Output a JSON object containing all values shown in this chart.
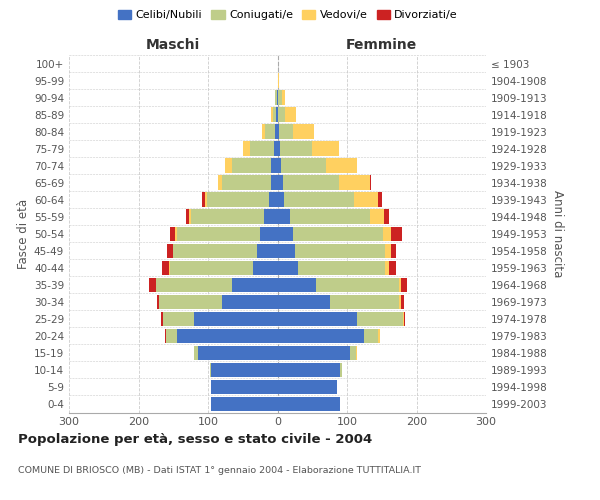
{
  "age_groups": [
    "0-4",
    "5-9",
    "10-14",
    "15-19",
    "20-24",
    "25-29",
    "30-34",
    "35-39",
    "40-44",
    "45-49",
    "50-54",
    "55-59",
    "60-64",
    "65-69",
    "70-74",
    "75-79",
    "80-84",
    "85-89",
    "90-94",
    "95-99",
    "100+"
  ],
  "birth_years": [
    "1999-2003",
    "1994-1998",
    "1989-1993",
    "1984-1988",
    "1979-1983",
    "1974-1978",
    "1969-1973",
    "1964-1968",
    "1959-1963",
    "1954-1958",
    "1949-1953",
    "1944-1948",
    "1939-1943",
    "1934-1938",
    "1929-1933",
    "1924-1928",
    "1919-1923",
    "1914-1918",
    "1909-1913",
    "1904-1908",
    "≤ 1903"
  ],
  "male": {
    "celibi": [
      95,
      95,
      95,
      115,
      145,
      120,
      80,
      65,
      35,
      30,
      25,
      20,
      12,
      10,
      10,
      5,
      3,
      2,
      1,
      0,
      0
    ],
    "coniugati": [
      0,
      0,
      2,
      5,
      15,
      45,
      90,
      110,
      120,
      120,
      120,
      105,
      90,
      70,
      55,
      35,
      15,
      5,
      2,
      0,
      0
    ],
    "vedovi": [
      0,
      0,
      0,
      0,
      0,
      0,
      0,
      0,
      1,
      1,
      2,
      2,
      3,
      5,
      10,
      10,
      5,
      2,
      0,
      0,
      0
    ],
    "divorziati": [
      0,
      0,
      0,
      0,
      2,
      2,
      3,
      10,
      10,
      8,
      8,
      5,
      3,
      0,
      0,
      0,
      0,
      0,
      0,
      0,
      0
    ]
  },
  "female": {
    "nubili": [
      90,
      85,
      90,
      105,
      125,
      115,
      75,
      55,
      30,
      25,
      22,
      18,
      10,
      8,
      5,
      4,
      2,
      1,
      1,
      0,
      0
    ],
    "coniugate": [
      0,
      0,
      3,
      8,
      20,
      65,
      100,
      120,
      125,
      130,
      130,
      115,
      100,
      80,
      65,
      45,
      20,
      10,
      5,
      1,
      0
    ],
    "vedove": [
      0,
      0,
      0,
      1,
      2,
      2,
      2,
      3,
      5,
      8,
      12,
      20,
      35,
      45,
      45,
      40,
      30,
      15,
      5,
      1,
      0
    ],
    "divorziate": [
      0,
      0,
      0,
      0,
      1,
      2,
      5,
      8,
      10,
      8,
      15,
      8,
      5,
      1,
      0,
      0,
      0,
      0,
      0,
      0,
      0
    ]
  },
  "colors": {
    "celibi": "#4472C4",
    "coniugati": "#BFCD8A",
    "vedovi": "#FFD060",
    "divorziati": "#CC2222"
  },
  "xlim": 300,
  "title": "Popolazione per età, sesso e stato civile - 2004",
  "subtitle": "COMUNE DI BRIOSCO (MB) - Dati ISTAT 1° gennaio 2004 - Elaborazione TUTTITALIA.IT",
  "ylabel_left": "Fasce di età",
  "ylabel_right": "Anni di nascita",
  "xlabel_left": "Maschi",
  "xlabel_right": "Femmine",
  "background_color": "#ffffff",
  "grid_color": "#cccccc"
}
